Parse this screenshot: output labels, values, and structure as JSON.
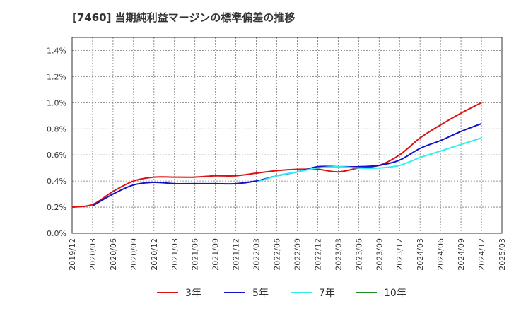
{
  "chart_data": {
    "type": "line",
    "title": "[7460]  当期純利益マージンの標準偏差の推移",
    "xlabel": "",
    "ylabel": "",
    "ylim": [
      0,
      1.5
    ],
    "yticks": [
      "0.0%",
      "0.2%",
      "0.4%",
      "0.6%",
      "0.8%",
      "1.0%",
      "1.2%",
      "1.4%"
    ],
    "ytick_values": [
      0,
      0.2,
      0.4,
      0.6,
      0.8,
      1.0,
      1.2,
      1.4
    ],
    "xticks": [
      "2019/12",
      "2020/03",
      "2020/06",
      "2020/09",
      "2020/12",
      "2021/03",
      "2021/06",
      "2021/09",
      "2021/12",
      "2022/03",
      "2022/06",
      "2022/09",
      "2022/12",
      "2023/03",
      "2023/06",
      "2023/09",
      "2023/12",
      "2024/03",
      "2024/06",
      "2024/09",
      "2024/12",
      "2025/03"
    ],
    "x": [
      "2019/12",
      "2020/03",
      "2020/06",
      "2020/09",
      "2020/12",
      "2021/03",
      "2021/06",
      "2021/09",
      "2021/12",
      "2022/03",
      "2022/06",
      "2022/09",
      "2022/12",
      "2023/03",
      "2023/06",
      "2023/09",
      "2023/12",
      "2024/03",
      "2024/06",
      "2024/09",
      "2024/12"
    ],
    "grid": true,
    "legend_position": "bottom",
    "series": [
      {
        "name": "3年",
        "color": "#dd1111",
        "values": [
          0.2,
          0.22,
          0.32,
          0.4,
          0.43,
          0.43,
          0.43,
          0.44,
          0.44,
          0.46,
          0.48,
          0.49,
          0.49,
          0.47,
          0.5,
          0.52,
          0.6,
          0.73,
          0.83,
          0.92,
          1.0
        ]
      },
      {
        "name": "5年",
        "color": "#1111cc",
        "values": [
          null,
          0.21,
          0.3,
          0.37,
          0.39,
          0.38,
          0.38,
          0.38,
          0.38,
          0.4,
          0.44,
          0.47,
          0.51,
          0.51,
          0.51,
          0.52,
          0.56,
          0.65,
          0.71,
          0.78,
          0.84
        ]
      },
      {
        "name": "7年",
        "color": "#33eeee",
        "values": [
          null,
          null,
          null,
          null,
          null,
          null,
          null,
          null,
          null,
          0.39,
          0.44,
          0.47,
          0.5,
          0.51,
          0.5,
          0.5,
          0.52,
          0.58,
          0.63,
          0.68,
          0.73
        ]
      },
      {
        "name": "10年",
        "color": "#228822",
        "values": [
          null,
          null,
          null,
          null,
          null,
          null,
          null,
          null,
          null,
          null,
          null,
          null,
          null,
          null,
          null,
          null,
          null,
          null,
          null,
          null,
          null
        ]
      }
    ]
  }
}
